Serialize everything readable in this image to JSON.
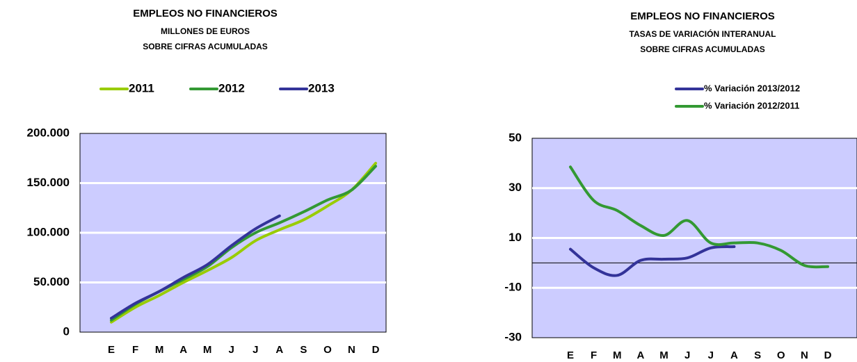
{
  "chart_data": [
    {
      "type": "line",
      "title": "EMPLEOS NO FINANCIEROS",
      "subtitle": [
        "MILLONES DE EUROS",
        "SOBRE CIFRAS ACUMULADAS"
      ],
      "categories": [
        "E",
        "F",
        "M",
        "A",
        "M",
        "J",
        "J",
        "A",
        "S",
        "O",
        "N",
        "D"
      ],
      "series": [
        {
          "name": "2011",
          "color": "#99cc00",
          "values": [
            10000,
            25000,
            37000,
            50000,
            62000,
            75000,
            92000,
            103000,
            113000,
            127000,
            143000,
            170000
          ]
        },
        {
          "name": "2012",
          "color": "#339933",
          "values": [
            12000,
            28000,
            41000,
            53000,
            66000,
            85000,
            100000,
            110000,
            121000,
            133000,
            143000,
            167000
          ]
        },
        {
          "name": "2013",
          "color": "#333399",
          "values": [
            14000,
            29000,
            41000,
            55000,
            68000,
            87000,
            104000,
            117000,
            null,
            null,
            null,
            null
          ]
        }
      ],
      "ylim": [
        0,
        200000
      ],
      "yticks": [
        0,
        {
          "value": 50000,
          "label": "50.000"
        },
        {
          "value": 100000,
          "label": "100.000"
        },
        {
          "value": 150000,
          "label": "150.000"
        },
        {
          "value": 200000,
          "label": "200.000"
        }
      ],
      "grid": true,
      "legend": "top"
    },
    {
      "type": "line",
      "title": "EMPLEOS NO FINANCIEROS",
      "subtitle": [
        "TASAS DE VARIACIÓN INTERANUAL",
        "SOBRE CIFRAS ACUMULADAS"
      ],
      "categories": [
        "E",
        "F",
        "M",
        "A",
        "M",
        "J",
        "J",
        "A",
        "S",
        "O",
        "N",
        "D"
      ],
      "series": [
        {
          "name": "% Variación 2013/2012",
          "color": "#333399",
          "values": [
            5.5,
            -2,
            -5,
            1,
            1.5,
            2,
            6,
            6.5,
            null,
            null,
            null,
            null
          ]
        },
        {
          "name": "% Variación 2012/2011",
          "color": "#339933",
          "values": [
            38.5,
            25,
            21,
            15,
            11,
            17,
            8,
            8,
            8,
            5,
            -1,
            -1.5
          ]
        }
      ],
      "ylim": [
        -30,
        50
      ],
      "yticks": [
        -30,
        -10,
        10,
        30,
        50
      ],
      "grid": true,
      "legend": "top-right"
    }
  ]
}
